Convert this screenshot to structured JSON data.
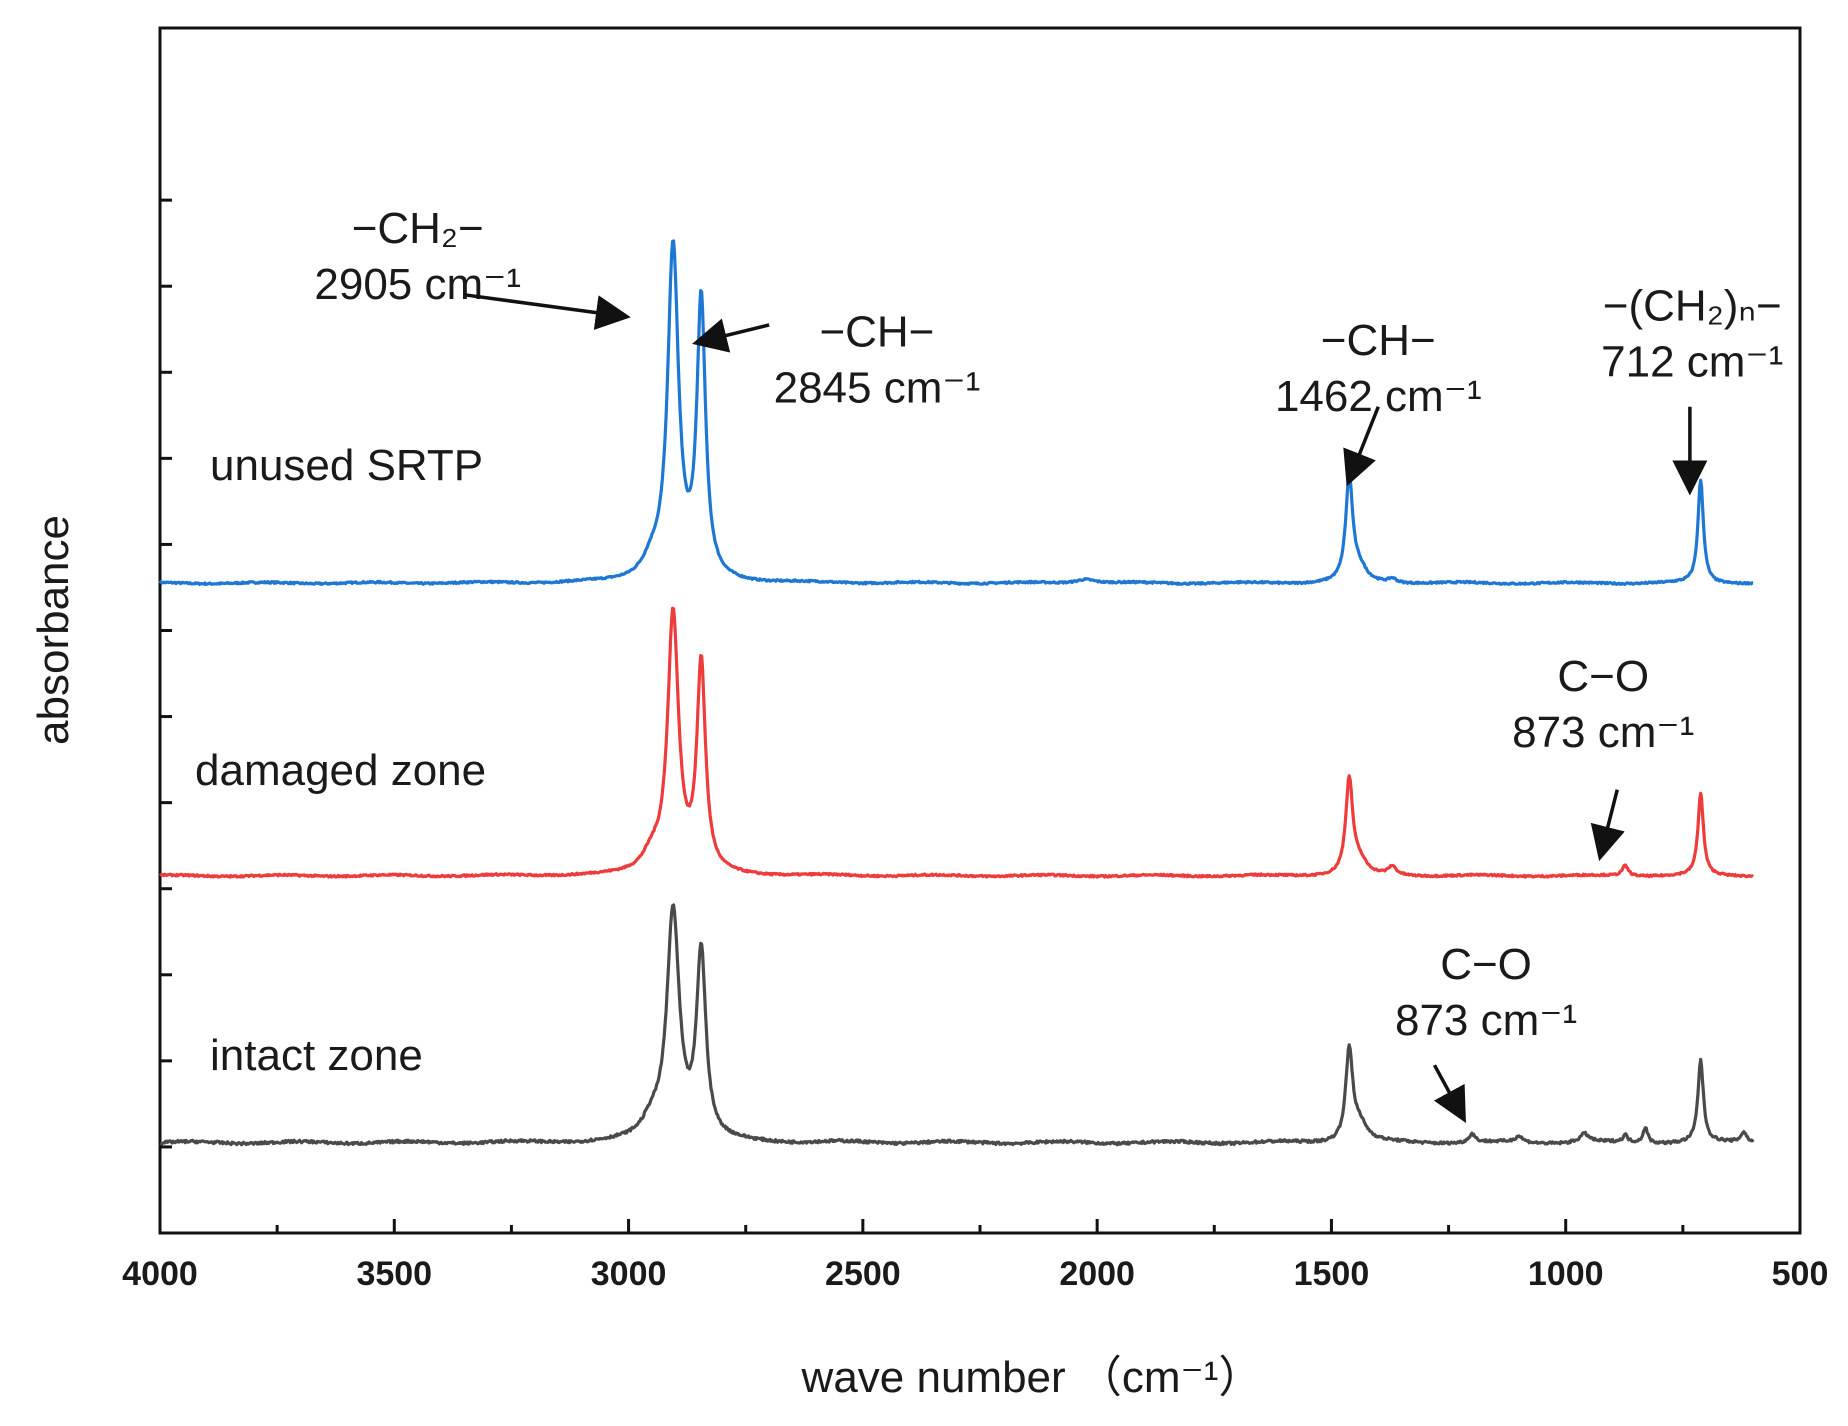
{
  "chart_data": {
    "type": "line",
    "title": "",
    "xlabel": "wave number （cm⁻¹）",
    "ylabel": "absorbance",
    "xlim": [
      4000,
      500
    ],
    "ylim": [
      0,
      14
    ],
    "x_ticks": [
      4000,
      3500,
      3000,
      2500,
      2000,
      1500,
      1000,
      500
    ],
    "x_tick_labels": [
      "4000",
      "3500",
      "3000",
      "2500",
      "2000",
      "1500",
      "1000",
      "500"
    ],
    "y_tick_values": [
      1,
      2,
      3,
      4,
      5,
      6,
      7,
      8,
      9,
      10,
      11,
      12
    ],
    "grid": false,
    "legend": "none",
    "series": [
      {
        "name": "unused SRTP",
        "label": "unused SRTP",
        "color": "#1f77d4",
        "baseline": 7.55,
        "noise": 0.02,
        "peaks": [
          {
            "x": 2905,
            "h": 3.85,
            "w": 14
          },
          {
            "x": 2845,
            "h": 3.2,
            "w": 11
          },
          {
            "x": 2950,
            "h": 0.2,
            "w": 25
          },
          {
            "x": 1462,
            "h": 1.2,
            "w": 9
          },
          {
            "x": 1440,
            "h": 0.15,
            "w": 18
          },
          {
            "x": 1370,
            "h": 0.05,
            "w": 10
          },
          {
            "x": 712,
            "h": 1.2,
            "w": 7
          },
          {
            "x": 2025,
            "h": 0.05,
            "w": 25
          }
        ]
      },
      {
        "name": "damaged zone",
        "label": "damaged zone",
        "color": "#ee3b3b",
        "baseline": 4.15,
        "noise": 0.02,
        "peaks": [
          {
            "x": 2905,
            "h": 3.0,
            "w": 14
          },
          {
            "x": 2845,
            "h": 2.4,
            "w": 11
          },
          {
            "x": 2950,
            "h": 0.2,
            "w": 25
          },
          {
            "x": 1462,
            "h": 1.1,
            "w": 9
          },
          {
            "x": 1440,
            "h": 0.15,
            "w": 18
          },
          {
            "x": 1370,
            "h": 0.1,
            "w": 10
          },
          {
            "x": 873,
            "h": 0.12,
            "w": 8
          },
          {
            "x": 712,
            "h": 0.95,
            "w": 7
          }
        ]
      },
      {
        "name": "intact zone",
        "label": "intact zone",
        "color": "#4a4a4a",
        "baseline": 1.05,
        "noise": 0.03,
        "peaks": [
          {
            "x": 2905,
            "h": 2.65,
            "w": 16
          },
          {
            "x": 2845,
            "h": 2.15,
            "w": 12
          },
          {
            "x": 2950,
            "h": 0.2,
            "w": 25
          },
          {
            "x": 1462,
            "h": 1.05,
            "w": 9
          },
          {
            "x": 1440,
            "h": 0.2,
            "w": 20
          },
          {
            "x": 1200,
            "h": 0.1,
            "w": 8
          },
          {
            "x": 1100,
            "h": 0.07,
            "w": 10
          },
          {
            "x": 960,
            "h": 0.1,
            "w": 12
          },
          {
            "x": 873,
            "h": 0.08,
            "w": 6
          },
          {
            "x": 830,
            "h": 0.18,
            "w": 6
          },
          {
            "x": 712,
            "h": 0.95,
            "w": 7
          },
          {
            "x": 620,
            "h": 0.12,
            "w": 8
          }
        ]
      }
    ],
    "annotations": [
      {
        "lines": [
          "−CH₂−",
          "2905 cm⁻¹"
        ],
        "x": 3450,
        "y": 11.5,
        "arrow_from": [
          3350,
          10.9
        ],
        "arrow_to": [
          3010,
          10.65
        ]
      },
      {
        "lines": [
          "−CH−",
          "2845 cm⁻¹"
        ],
        "x": 2470,
        "y": 10.3,
        "arrow_from": [
          2700,
          10.55
        ],
        "arrow_to": [
          2850,
          10.35
        ]
      },
      {
        "lines": [
          "−CH−",
          "1462 cm⁻¹"
        ],
        "x": 1400,
        "y": 10.2,
        "arrow_from": [
          1400,
          9.6
        ],
        "arrow_to": [
          1462,
          8.75
        ]
      },
      {
        "lines": [
          "−(CH₂)ₙ−",
          "712 cm⁻¹"
        ],
        "x": 730,
        "y": 10.6,
        "arrow_from": [
          735,
          9.6
        ],
        "arrow_to": [
          735,
          8.65
        ]
      },
      {
        "lines": [
          "C−O",
          "873 cm⁻¹"
        ],
        "x": 920,
        "y": 6.3,
        "arrow_from": [
          890,
          5.15
        ],
        "arrow_to": [
          925,
          4.4
        ]
      },
      {
        "lines": [
          "C−O",
          "873 cm⁻¹"
        ],
        "x": 1170,
        "y": 2.95,
        "arrow_from": [
          1280,
          1.95
        ],
        "arrow_to": [
          1220,
          1.35
        ]
      }
    ]
  }
}
